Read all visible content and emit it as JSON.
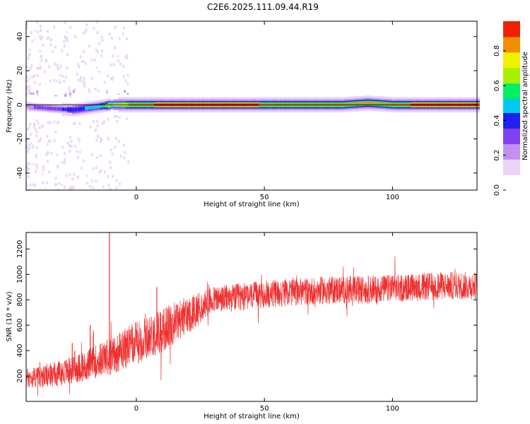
{
  "title": "C2E6.2025.111.09.44.R19",
  "chart_data": [
    {
      "type": "heatmap",
      "xlabel": "Height of straight line (km)",
      "ylabel": "Frequency (Hz)",
      "xlim": [
        -43,
        133
      ],
      "ylim": [
        -50,
        49
      ],
      "xticks": [
        0,
        50,
        100
      ],
      "yticks": [
        -40,
        -20,
        0,
        20,
        40
      ],
      "colorbar": {
        "label": "Normalized spectral amplitude",
        "range": [
          0,
          0.97
        ],
        "ticks": [
          0.0,
          0.2,
          0.4,
          0.6,
          0.8
        ],
        "colors": [
          "#ffffff",
          "#e8d4f8",
          "#c490f0",
          "#8040f0",
          "#2020f0",
          "#00c8f0",
          "#00f060",
          "#a8f000",
          "#f0f000",
          "#f09000",
          "#f02000",
          "#f0206a"
        ]
      },
      "reference_line_frequency": 0,
      "ridge": {
        "description_points_x": [
          -43,
          -35,
          -25,
          -15,
          -10,
          0,
          10,
          20,
          40,
          60,
          80,
          90,
          100,
          110,
          133
        ],
        "center_frequency": [
          -1,
          -2,
          -3,
          -1,
          0,
          0,
          0,
          0,
          0,
          0,
          0,
          1,
          0,
          0,
          0
        ],
        "peak_amplitude": [
          0.25,
          0.3,
          0.4,
          0.5,
          0.7,
          0.85,
          0.9,
          0.9,
          0.9,
          0.85,
          0.85,
          0.8,
          0.85,
          0.9,
          0.9
        ]
      }
    },
    {
      "type": "line",
      "xlabel": "Height of straight line (km)",
      "ylabel": "SNR (10 * v/v)",
      "xlim": [
        -43,
        133
      ],
      "ylim": [
        0,
        1330
      ],
      "xticks": [
        0,
        50,
        100
      ],
      "yticks": [
        200,
        400,
        600,
        800,
        1000,
        1200
      ],
      "series": [
        {
          "color": "#f03030",
          "trend_x": [
            -43,
            -30,
            -20,
            -10,
            0,
            10,
            20,
            30,
            40,
            50,
            60,
            70,
            80,
            90,
            100,
            110,
            120,
            133
          ],
          "trend_y": [
            180,
            220,
            280,
            360,
            460,
            560,
            680,
            800,
            820,
            840,
            860,
            870,
            880,
            880,
            890,
            900,
            910,
            910
          ],
          "spread": [
            80,
            100,
            120,
            150,
            170,
            180,
            150,
            110,
            110,
            110,
            110,
            110,
            110,
            110,
            110,
            110,
            110,
            110
          ],
          "spikes": [
            {
              "x": -25,
              "y": 460
            },
            {
              "x": -24,
              "y": 400
            },
            {
              "x": -18,
              "y": 600
            },
            {
              "x": -10.5,
              "y": 1330
            },
            {
              "x": -4,
              "y": 500
            },
            {
              "x": 8,
              "y": 900
            },
            {
              "x": 10,
              "y": 520
            }
          ]
        }
      ]
    }
  ]
}
